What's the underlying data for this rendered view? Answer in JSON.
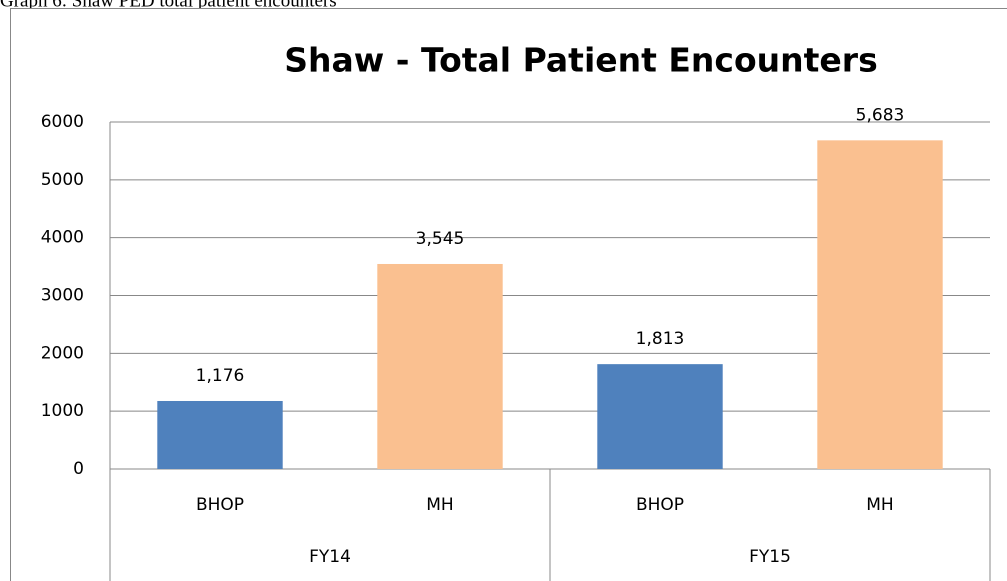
{
  "caption": "Graph 6: Shaw PED total patient encounters",
  "chart_data": {
    "type": "bar",
    "title": "Shaw - Total Patient Encounters",
    "categories": [
      "BHOP",
      "MH",
      "BHOP",
      "MH"
    ],
    "groups": [
      {
        "name": "FY14",
        "size": 2
      },
      {
        "name": "FY15",
        "size": 2
      }
    ],
    "values": [
      1176,
      3545,
      1813,
      5683
    ],
    "value_labels": [
      "1,176",
      "3,545",
      "1,813",
      "5,683"
    ],
    "colors": [
      "#4f81bd",
      "#fac090",
      "#4f81bd",
      "#fac090"
    ],
    "ylim": [
      0,
      6000
    ],
    "yticks": [
      0,
      1000,
      2000,
      3000,
      4000,
      5000,
      6000
    ],
    "grid": true
  }
}
